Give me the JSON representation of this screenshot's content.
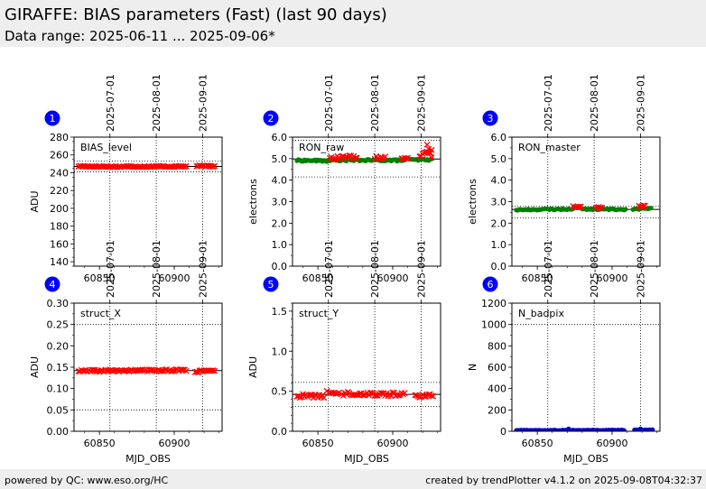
{
  "header": {
    "title": "GIRAFFE: BIAS parameters (Fast) (last 90 days)",
    "subtitle": "Data range: 2025-06-11 ... 2025-09-06*"
  },
  "footer": {
    "left": "powered by QC: www.eso.org/HC",
    "right": "created by trendPlotter v4.1.2 on 2025-09-08T04:32:37"
  },
  "colors": {
    "red": "#ff0000",
    "green": "#008000",
    "blue": "#0000cc",
    "badge": "#0000ff"
  },
  "chart_data": [
    {
      "type": "scatter",
      "number": "1",
      "label": "BIAS_level",
      "ylabel": "ADU",
      "xlabel": "",
      "xlim": [
        60833,
        60932
      ],
      "ylim": [
        135,
        280
      ],
      "yticks": [
        140,
        160,
        180,
        200,
        220,
        240,
        260,
        280
      ],
      "yminor": 10,
      "xticks": [
        60850,
        60900
      ],
      "xtick_labels": [
        "60850",
        "60900"
      ],
      "date_ticks": [
        {
          "x": 60857,
          "label": "2025-07-01"
        },
        {
          "x": 60888,
          "label": "2025-08-01"
        },
        {
          "x": 60919,
          "label": "2025-09-01"
        }
      ],
      "hlines": [
        {
          "y": 247,
          "style": "solid"
        },
        {
          "y": 241,
          "style": "dotted"
        },
        {
          "y": 253,
          "style": "dotted"
        }
      ],
      "series": [
        {
          "color": "red",
          "marker": "x",
          "noise": 0.7,
          "segments": [
            {
              "x": [
                60836,
                60864
              ],
              "y": [
                247.3,
                246.8
              ]
            },
            {
              "x": [
                60866,
                60908
              ],
              "y": [
                247.0,
                247.1
              ]
            },
            {
              "x": [
                60915,
                60927
              ],
              "y": [
                247.5,
                247.2
              ]
            }
          ]
        }
      ]
    },
    {
      "type": "scatter",
      "number": "2",
      "label": "RON_raw",
      "ylabel": "electrons",
      "xlabel": "",
      "xlim": [
        60833,
        60932
      ],
      "ylim": [
        0,
        6
      ],
      "yticks": [
        0.0,
        1.0,
        2.0,
        3.0,
        4.0,
        5.0,
        6.0
      ],
      "yminor": 0.5,
      "xticks": [
        60850,
        60900
      ],
      "xtick_labels": [
        "60850",
        "60900"
      ],
      "date_ticks": [
        {
          "x": 60857,
          "label": "2025-07-01"
        },
        {
          "x": 60888,
          "label": "2025-08-01"
        },
        {
          "x": 60919,
          "label": "2025-09-01"
        }
      ],
      "hlines": [
        {
          "y": 4.98,
          "style": "solid"
        },
        {
          "y": 4.15,
          "style": "dotted"
        },
        {
          "y": 5.85,
          "style": "dotted"
        }
      ],
      "series": [
        {
          "color": "green",
          "marker": "o",
          "noise": 0.04,
          "segments": [
            {
              "x": [
                60836,
                60858
              ],
              "y": [
                4.92,
                4.9
              ]
            },
            {
              "x": [
                60860,
                60908
              ],
              "y": [
                4.93,
                4.92
              ]
            },
            {
              "x": [
                60912,
                60926
              ],
              "y": [
                4.94,
                4.95
              ]
            }
          ]
        },
        {
          "color": "red",
          "marker": "x",
          "noise": 0.08,
          "segments": [
            {
              "x": [
                60858,
                60876
              ],
              "y": [
                5.02,
                5.1
              ]
            },
            {
              "x": [
                60888,
                60895
              ],
              "y": [
                5.05,
                5.02
              ]
            },
            {
              "x": [
                60906,
                60910
              ],
              "y": [
                5.05,
                5.08
              ]
            },
            {
              "x": [
                60918,
                60926
              ],
              "y": [
                5.1,
                5.35
              ]
            }
          ]
        },
        {
          "color": "red",
          "marker": "x",
          "points": [
            [
              60923,
              5.65
            ],
            [
              60924,
              5.45
            ],
            [
              60925,
              5.25
            ],
            [
              60926,
              5.05
            ]
          ]
        }
      ]
    },
    {
      "type": "scatter",
      "number": "3",
      "label": "RON_master",
      "ylabel": "electrons",
      "xlabel": "",
      "xlim": [
        60833,
        60932
      ],
      "ylim": [
        0,
        6
      ],
      "yticks": [
        0.0,
        1.0,
        2.0,
        3.0,
        4.0,
        5.0,
        6.0
      ],
      "yminor": 0.5,
      "xticks": [
        60850,
        60900
      ],
      "xtick_labels": [
        "60850",
        "60900"
      ],
      "date_ticks": [
        {
          "x": 60857,
          "label": "2025-07-01"
        },
        {
          "x": 60888,
          "label": "2025-08-01"
        },
        {
          "x": 60919,
          "label": "2025-09-01"
        }
      ],
      "hlines": [
        {
          "y": 2.64,
          "style": "solid"
        },
        {
          "y": 2.24,
          "style": "dotted"
        },
        {
          "y": 2.78,
          "style": "dotted"
        }
      ],
      "series": [
        {
          "color": "green",
          "marker": "o",
          "noise": 0.03,
          "segments": [
            {
              "x": [
                60836,
                60874
              ],
              "y": [
                2.62,
                2.66
              ]
            },
            {
              "x": [
                60880,
                60909
              ],
              "y": [
                2.65,
                2.64
              ]
            },
            {
              "x": [
                60914,
                60926
              ],
              "y": [
                2.66,
                2.68
              ]
            }
          ]
        },
        {
          "color": "red",
          "marker": "x",
          "noise": 0.03,
          "segments": [
            {
              "x": [
                60874,
                60879
              ],
              "y": [
                2.76,
                2.74
              ]
            },
            {
              "x": [
                60889,
                60893
              ],
              "y": [
                2.72,
                2.72
              ]
            },
            {
              "x": [
                60918,
                60922
              ],
              "y": [
                2.78,
                2.8
              ]
            }
          ]
        }
      ]
    },
    {
      "type": "scatter",
      "number": "4",
      "label": "struct_X",
      "ylabel": "ADU",
      "xlabel": "MJD_OBS",
      "xlim": [
        60833,
        60932
      ],
      "ylim": [
        0,
        0.3
      ],
      "yticks": [
        0.0,
        0.05,
        0.1,
        0.15,
        0.2,
        0.25,
        0.3
      ],
      "yminor": 0.025,
      "xticks": [
        60850,
        60900
      ],
      "xtick_labels": [
        "60850",
        "60900"
      ],
      "date_ticks": [
        {
          "x": 60857,
          "label": "2025-07-01"
        },
        {
          "x": 60888,
          "label": "2025-08-01"
        },
        {
          "x": 60919,
          "label": "2025-09-01"
        }
      ],
      "hlines": [
        {
          "y": 0.142,
          "style": "solid"
        },
        {
          "y": 0.05,
          "style": "dotted"
        },
        {
          "y": 0.25,
          "style": "dotted"
        }
      ],
      "series": [
        {
          "color": "red",
          "marker": "x",
          "noise": 0.0025,
          "segments": [
            {
              "x": [
                60836,
                60908
              ],
              "y": [
                0.141,
                0.143
              ]
            },
            {
              "x": [
                60914,
                60927
              ],
              "y": [
                0.14,
                0.141
              ]
            }
          ]
        }
      ]
    },
    {
      "type": "scatter",
      "number": "5",
      "label": "struct_Y",
      "ylabel": "ADU",
      "xlabel": "MJD_OBS",
      "xlim": [
        60833,
        60932
      ],
      "ylim": [
        0,
        1.6
      ],
      "yticks": [
        0.0,
        0.5,
        1.0,
        1.5
      ],
      "yminor": 0.1,
      "xticks": [
        60850,
        60900
      ],
      "xtick_labels": [
        "60850",
        "60900"
      ],
      "date_ticks": [
        {
          "x": 60857,
          "label": "2025-07-01"
        },
        {
          "x": 60888,
          "label": "2025-08-01"
        },
        {
          "x": 60919,
          "label": "2025-09-01"
        }
      ],
      "hlines": [
        {
          "y": 0.46,
          "style": "solid"
        },
        {
          "y": 0.31,
          "style": "dotted"
        },
        {
          "y": 0.61,
          "style": "dotted"
        }
      ],
      "series": [
        {
          "color": "red",
          "marker": "x",
          "noise": 0.025,
          "segments": [
            {
              "x": [
                60836,
                60854
              ],
              "y": [
                0.44,
                0.44
              ]
            },
            {
              "x": [
                60856,
                60864
              ],
              "y": [
                0.48,
                0.48
              ]
            },
            {
              "x": [
                60866,
                60908
              ],
              "y": [
                0.47,
                0.46
              ]
            },
            {
              "x": [
                60915,
                60927
              ],
              "y": [
                0.44,
                0.45
              ]
            }
          ]
        }
      ]
    },
    {
      "type": "scatter",
      "number": "6",
      "label": "N_badpix",
      "ylabel": "N",
      "xlabel": "MJD_OBS",
      "xlim": [
        60833,
        60932
      ],
      "ylim": [
        0,
        1200
      ],
      "yticks": [
        0,
        200,
        400,
        600,
        800,
        1000,
        1200
      ],
      "yminor": 100,
      "xticks": [
        60850,
        60900
      ],
      "xtick_labels": [
        "60850",
        "60900"
      ],
      "date_ticks": [
        {
          "x": 60857,
          "label": "2025-07-01"
        },
        {
          "x": 60888,
          "label": "2025-08-01"
        },
        {
          "x": 60919,
          "label": "2025-09-01"
        }
      ],
      "hlines": [
        {
          "y": 1000,
          "style": "dotted"
        }
      ],
      "series": [
        {
          "color": "blue",
          "marker": "o",
          "noise": 3,
          "segments": [
            {
              "x": [
                60836,
                60908
              ],
              "y": [
                8,
                9
              ]
            },
            {
              "x": [
                60915,
                60927
              ],
              "y": [
                12,
                12
              ]
            }
          ]
        },
        {
          "color": "blue",
          "marker": "o",
          "points": [
            [
              60871,
              22
            ],
            [
              60919,
              22
            ]
          ]
        }
      ]
    }
  ]
}
